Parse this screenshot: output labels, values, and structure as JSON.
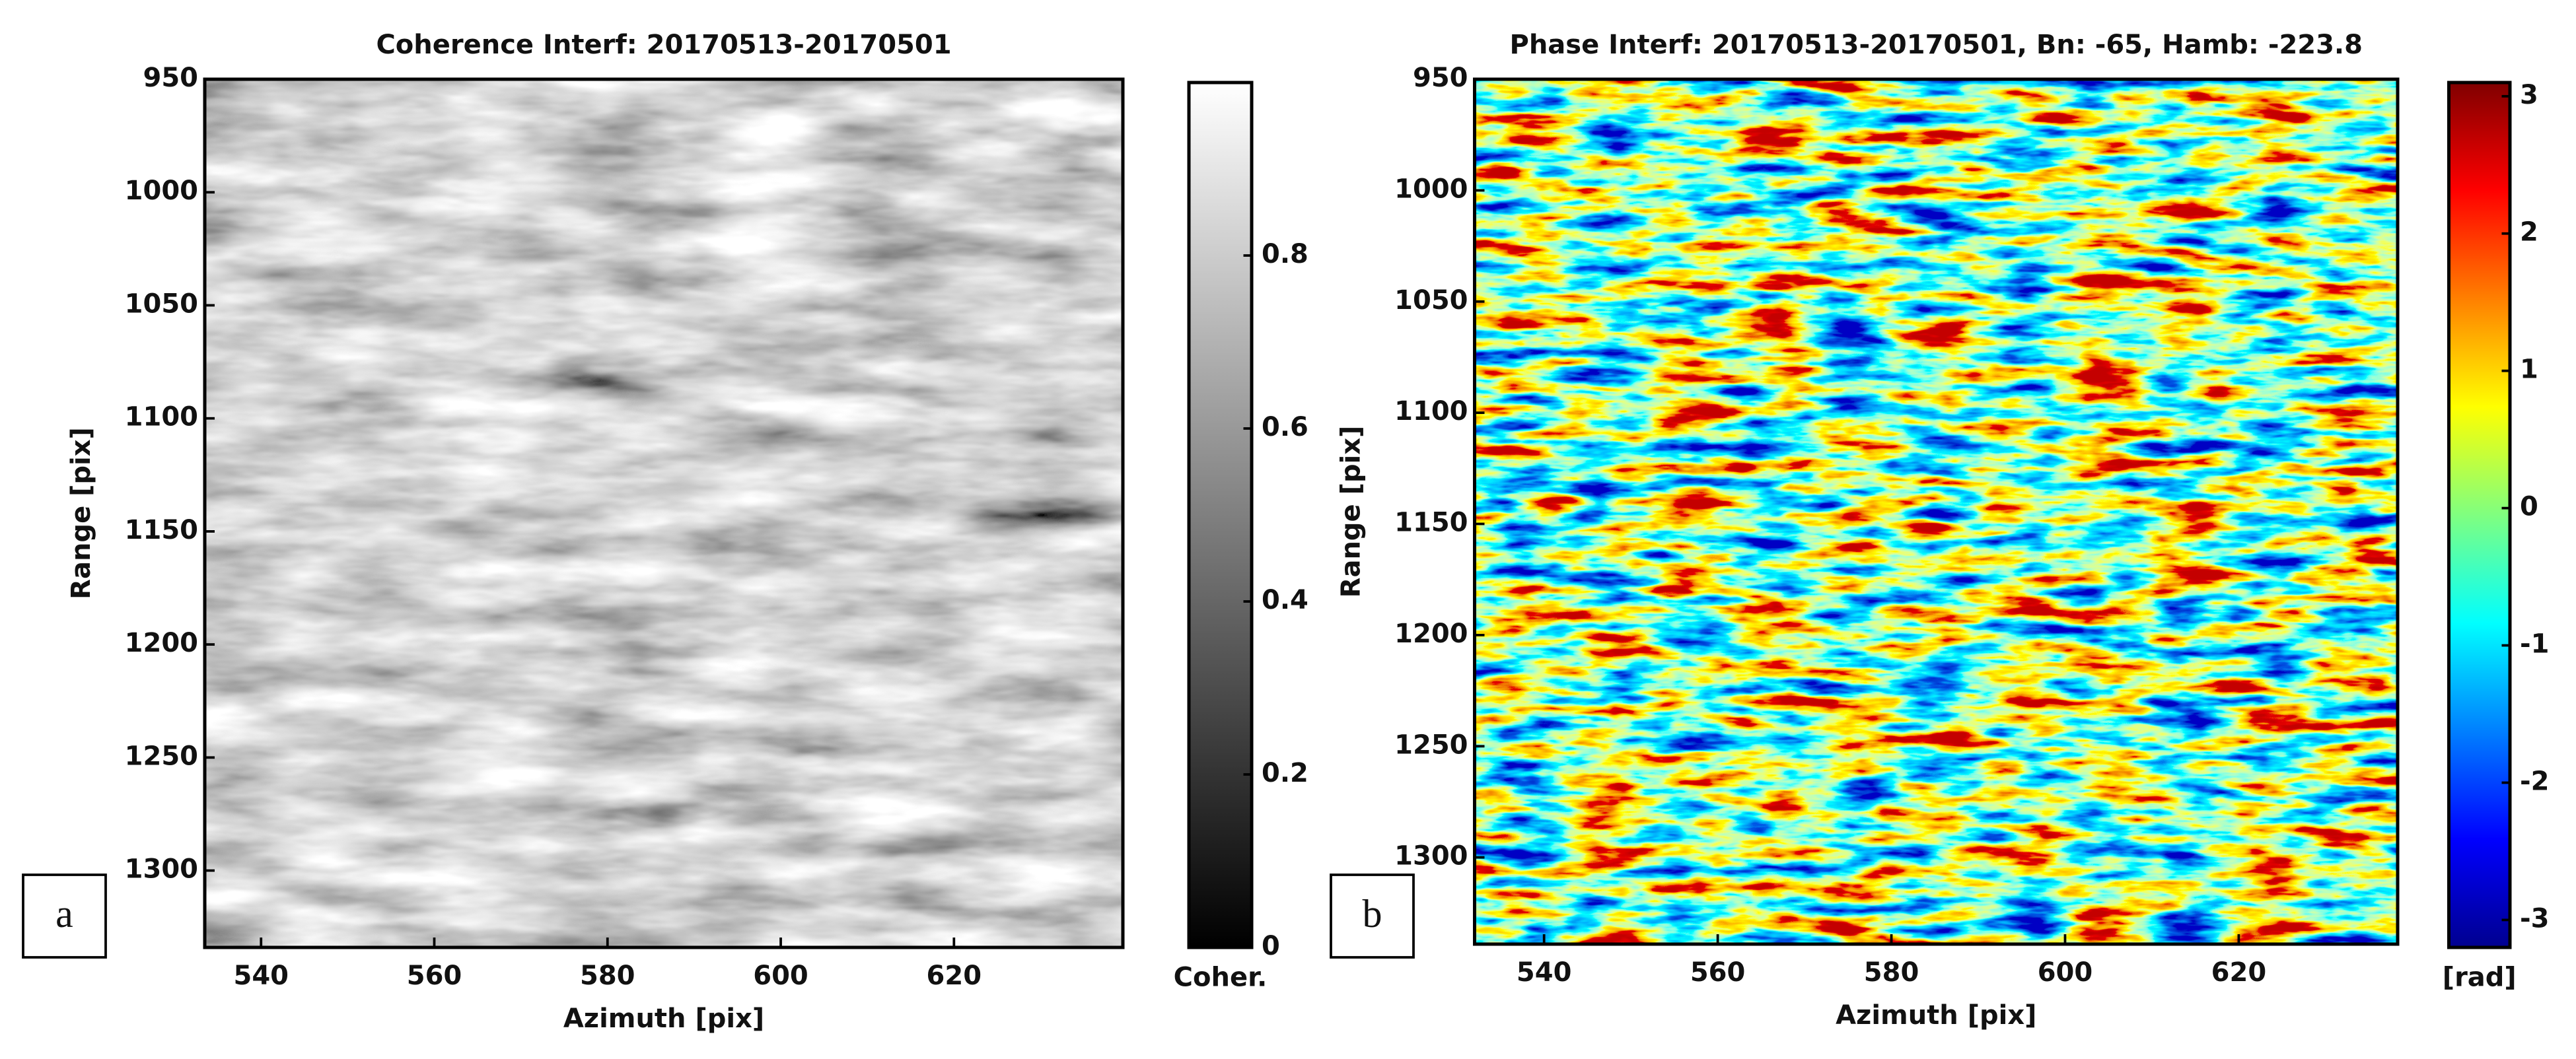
{
  "chart_data": [
    {
      "type": "heatmap",
      "title": "Coherence Interf: 20170513-20170501",
      "xlabel": "Azimuth [pix]",
      "ylabel": "Range [pix]",
      "xlim": [
        533.5,
        639.5
      ],
      "xticks": [
        540,
        560,
        580,
        600,
        620
      ],
      "ylim": [
        1334,
        950
      ],
      "yticks": [
        950,
        1000,
        1050,
        1100,
        1150,
        1200,
        1250,
        1300
      ],
      "colormap": "gray",
      "colorbar_lim": [
        0,
        1
      ],
      "colorbar_ticks": [
        0,
        0.2,
        0.4,
        0.6,
        0.8
      ],
      "colorbar_label": "Coher.",
      "panel_label": "a"
    },
    {
      "type": "heatmap",
      "title": "Phase Interf: 20170513-20170501, Bn: -65, Hamb: -223.8",
      "xlabel": "Azimuth [pix]",
      "ylabel": "Range [pix]",
      "xlim": [
        532,
        638.3
      ],
      "xticks": [
        540,
        560,
        580,
        600,
        620
      ],
      "ylim": [
        1339,
        950
      ],
      "yticks": [
        950,
        1000,
        1050,
        1100,
        1150,
        1200,
        1250,
        1300
      ],
      "colormap": "jet",
      "colorbar_lim": [
        -3.2,
        3.1
      ],
      "colorbar_ticks": [
        -3,
        -2,
        -1,
        0,
        1,
        2,
        3
      ],
      "colorbar_label": "[rad]",
      "panel_label": "b"
    }
  ]
}
